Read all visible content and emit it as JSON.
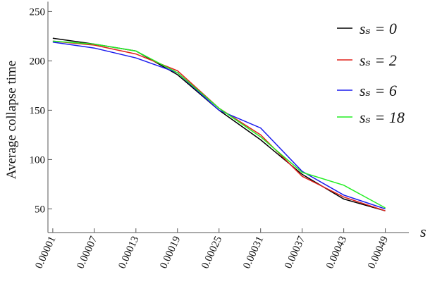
{
  "chart_data": {
    "type": "line",
    "x": [
      1e-05,
      7e-05,
      0.00013,
      0.00019,
      0.00025,
      0.00031,
      0.00037,
      0.00043,
      0.00049
    ],
    "series": [
      {
        "name": "sₛ = 0",
        "color": "#000000",
        "values": [
          223,
          217,
          210,
          186,
          150,
          120,
          85,
          60,
          48
        ]
      },
      {
        "name": "sₛ = 2",
        "color": "#e0201a",
        "values": [
          220,
          216,
          207,
          190,
          152,
          125,
          83,
          62,
          48
        ]
      },
      {
        "name": "sₛ = 6",
        "color": "#1a1aee",
        "values": [
          219,
          213,
          203,
          188,
          150,
          132,
          88,
          64,
          50
        ]
      },
      {
        "name": "sₛ = 18",
        "color": "#22ee22",
        "values": [
          220,
          217,
          210,
          188,
          152,
          123,
          87,
          74,
          51
        ]
      }
    ],
    "ylabel": "Average collapse time",
    "xlabel": "s",
    "xlim": [
      3e-06,
      0.000524
    ],
    "ylim": [
      26,
      260
    ],
    "xticks": [
      1e-05,
      7e-05,
      0.00013,
      0.00019,
      0.00025,
      0.00031,
      0.00037,
      0.00043,
      0.00049
    ],
    "yticks": [
      50,
      100,
      150,
      200,
      250
    ]
  }
}
